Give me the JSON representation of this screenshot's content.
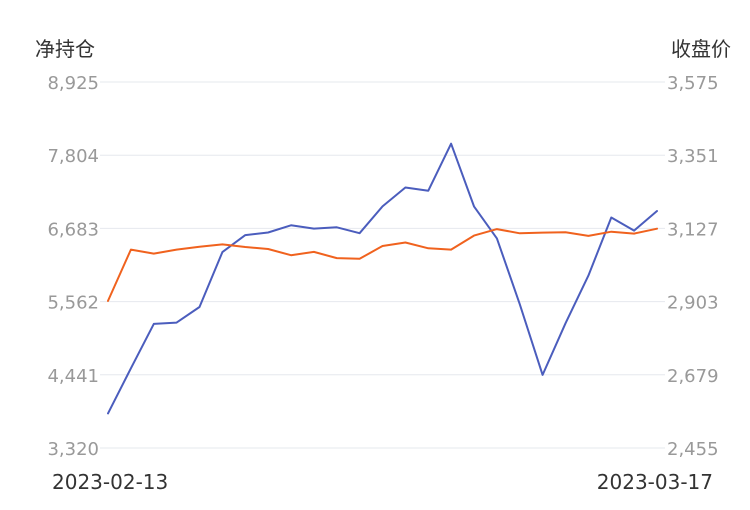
{
  "chart_data": {
    "type": "line",
    "left_axis": {
      "title": "净持仓",
      "ticks": [
        "8,925",
        "7,804",
        "6,683",
        "5,562",
        "4,441",
        "3,320"
      ],
      "range": [
        3320,
        8925
      ]
    },
    "right_axis": {
      "title": "收盘价",
      "ticks": [
        "3,575",
        "3,351",
        "3,127",
        "2,903",
        "2,679",
        "2,455"
      ],
      "range": [
        2455,
        3575
      ]
    },
    "x_labels": {
      "start": "2023-02-13",
      "end": "2023-03-17"
    },
    "grid": true,
    "series": [
      {
        "axis": "left",
        "color": "#4b5dbd",
        "values": [
          3850,
          4540,
          5220,
          5240,
          5480,
          6320,
          6580,
          6620,
          6730,
          6680,
          6700,
          6610,
          7020,
          7310,
          7260,
          7980,
          7020,
          6530,
          5520,
          4440,
          5230,
          5960,
          6850,
          6650,
          6950
        ]
      },
      {
        "axis": "right",
        "color": "#f0621e",
        "values": [
          2905,
          3062,
          3050,
          3062,
          3071,
          3078,
          3070,
          3064,
          3045,
          3055,
          3036,
          3034,
          3073,
          3084,
          3066,
          3062,
          3105,
          3125,
          3112,
          3114,
          3115,
          3104,
          3117,
          3111,
          3126
        ]
      }
    ]
  }
}
